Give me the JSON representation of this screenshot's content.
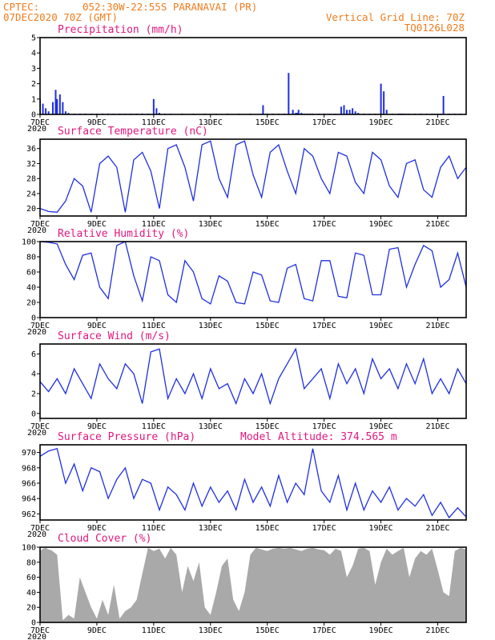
{
  "header": {
    "source": "CPTEC:",
    "location": "052:30W-22:55S  PARANAVAI (PR)",
    "date": "07DEC2020 70Z (GMT)",
    "grid_note": "Vertical Grid Line: 70Z",
    "code": "TQ0126L028"
  },
  "colors": {
    "title": "#e0187e",
    "header": "#f07c1c",
    "series": "#1f2fe0",
    "cloud": "#a9a9a9"
  },
  "x_axis": {
    "days": [
      7,
      22
    ],
    "tick_days": [
      7,
      9,
      11,
      13,
      15,
      17,
      19,
      21
    ],
    "tick_labels": [
      "7DEC",
      "9DEC",
      "11DEC",
      "13DEC",
      "15DEC",
      "17DEC",
      "19DEC",
      "21DEC"
    ],
    "year_label": "2020"
  },
  "chart_data": [
    {
      "type": "bar",
      "title": "Precipitation (mm/h)",
      "ylim": [
        0,
        5
      ],
      "yticks": [
        0,
        1,
        2,
        3,
        4,
        5
      ],
      "x": [
        7.0,
        7.1,
        7.2,
        7.3,
        7.45,
        7.55,
        7.6,
        7.7,
        7.8,
        7.9,
        8.0,
        8.2,
        8.4,
        8.6,
        8.8,
        9.0,
        9.2,
        9.4,
        9.6,
        9.8,
        10.0,
        10.2,
        10.4,
        10.6,
        10.8,
        11.0,
        11.1,
        11.2,
        11.4,
        11.6,
        12.0,
        12.4,
        12.8,
        13.2,
        13.6,
        14.0,
        14.4,
        14.8,
        14.85,
        15.0,
        15.2,
        15.4,
        15.6,
        15.75,
        15.9,
        16.0,
        16.05,
        16.1,
        16.2,
        16.3,
        16.4,
        16.5,
        16.6,
        16.8,
        17.0,
        17.2,
        17.4,
        17.6,
        17.7,
        17.8,
        17.9,
        18.0,
        18.1,
        18.2,
        18.4,
        18.6,
        18.8,
        19.0,
        19.1,
        19.2,
        19.4,
        19.6,
        19.65,
        19.7,
        19.75,
        19.8,
        19.9,
        20.0,
        20.2,
        20.4,
        20.6,
        20.8,
        20.9,
        21.0,
        21.1,
        21.2,
        21.4,
        21.6,
        21.8,
        22.0
      ],
      "values": [
        1.0,
        0.7,
        0.4,
        0.2,
        0.8,
        1.6,
        1.0,
        1.3,
        0.8,
        0.2,
        0.1,
        0.05,
        0.05,
        0.05,
        0.05,
        0.05,
        0.05,
        0.05,
        0.05,
        0.05,
        0.05,
        0.05,
        0.05,
        0.05,
        0.05,
        1.0,
        0.4,
        0.1,
        0.05,
        0.05,
        0.05,
        0.05,
        0.05,
        0.05,
        0.05,
        0.05,
        0.05,
        0.05,
        0.6,
        0.05,
        0.05,
        0.05,
        0.05,
        2.7,
        0.3,
        0.1,
        0.1,
        0.3,
        0.1,
        0.05,
        0.05,
        0.05,
        0.05,
        0.05,
        0.05,
        0.05,
        0.05,
        0.5,
        0.6,
        0.3,
        0.3,
        0.4,
        0.2,
        0.1,
        0.05,
        0.05,
        0.05,
        2.0,
        1.5,
        0.3,
        0.05,
        0.05,
        0.05,
        0.05,
        0.05,
        0.05,
        0.05,
        0.05,
        0.05,
        0.05,
        0.05,
        0.05,
        0.05,
        0.05,
        0.05,
        1.2,
        0.05,
        0.05,
        0.05,
        0.05
      ]
    },
    {
      "type": "line",
      "title": "Surface Temperature (nC)",
      "ylim": [
        18,
        38.5
      ],
      "yticks": [
        20,
        24,
        28,
        32,
        36
      ],
      "x": [
        7.0,
        7.3,
        7.6,
        7.9,
        8.2,
        8.5,
        8.8,
        9.1,
        9.4,
        9.7,
        10.0,
        10.3,
        10.6,
        10.9,
        11.2,
        11.5,
        11.8,
        12.1,
        12.4,
        12.7,
        13.0,
        13.3,
        13.6,
        13.9,
        14.2,
        14.5,
        14.8,
        15.1,
        15.4,
        15.7,
        16.0,
        16.3,
        16.6,
        16.9,
        17.2,
        17.5,
        17.8,
        18.1,
        18.4,
        18.7,
        19.0,
        19.3,
        19.6,
        19.9,
        20.2,
        20.5,
        20.8,
        21.1,
        21.4,
        21.7,
        22.0
      ],
      "values": [
        20,
        19.2,
        19.0,
        22,
        28,
        26,
        19,
        32,
        34,
        31,
        19,
        33,
        35,
        30,
        20,
        36,
        37,
        31,
        22,
        37,
        38,
        28,
        23,
        37,
        38,
        29,
        23,
        35,
        37,
        30,
        24,
        36,
        34,
        28,
        24,
        35,
        34,
        27,
        24,
        35,
        33,
        26,
        23,
        32,
        33,
        25,
        23,
        31,
        34,
        28,
        31
      ]
    },
    {
      "type": "line",
      "title": "Relative Humidity (%)",
      "ylim": [
        0,
        100
      ],
      "yticks": [
        0,
        20,
        40,
        60,
        80,
        100
      ],
      "x": [
        7.0,
        7.3,
        7.6,
        7.9,
        8.2,
        8.5,
        8.8,
        9.1,
        9.4,
        9.7,
        10.0,
        10.3,
        10.6,
        10.9,
        11.2,
        11.5,
        11.8,
        12.1,
        12.4,
        12.7,
        13.0,
        13.3,
        13.6,
        13.9,
        14.2,
        14.5,
        14.8,
        15.1,
        15.4,
        15.7,
        16.0,
        16.3,
        16.6,
        16.9,
        17.2,
        17.5,
        17.8,
        18.1,
        18.4,
        18.7,
        19.0,
        19.3,
        19.6,
        19.9,
        20.2,
        20.5,
        20.8,
        21.1,
        21.4,
        21.7,
        22.0
      ],
      "values": [
        100,
        99,
        97,
        70,
        50,
        82,
        85,
        40,
        25,
        95,
        100,
        55,
        22,
        80,
        75,
        30,
        20,
        75,
        60,
        25,
        18,
        55,
        48,
        20,
        18,
        60,
        56,
        22,
        20,
        65,
        70,
        25,
        22,
        75,
        75,
        28,
        26,
        85,
        82,
        30,
        30,
        90,
        92,
        40,
        70,
        95,
        88,
        40,
        50,
        85,
        40
      ]
    },
    {
      "type": "line",
      "title": "Surface Wind (m/s)",
      "ylim": [
        -0.5,
        7
      ],
      "yticks": [
        0,
        2,
        4,
        6
      ],
      "x": [
        7.0,
        7.3,
        7.6,
        7.9,
        8.2,
        8.5,
        8.8,
        9.1,
        9.4,
        9.7,
        10.0,
        10.3,
        10.6,
        10.9,
        11.2,
        11.5,
        11.8,
        12.1,
        12.4,
        12.7,
        13.0,
        13.3,
        13.6,
        13.9,
        14.2,
        14.5,
        14.8,
        15.1,
        15.4,
        15.7,
        16.0,
        16.3,
        16.6,
        16.9,
        17.2,
        17.5,
        17.8,
        18.1,
        18.4,
        18.7,
        19.0,
        19.3,
        19.6,
        19.9,
        20.2,
        20.5,
        20.8,
        21.1,
        21.4,
        21.7,
        22.0
      ],
      "values": [
        3.2,
        2.2,
        3.5,
        2.0,
        4.5,
        3.0,
        1.5,
        5.0,
        3.5,
        2.5,
        5.0,
        4.0,
        1.0,
        6.2,
        6.5,
        1.5,
        3.5,
        2.0,
        4.0,
        1.5,
        4.5,
        2.5,
        3.0,
        1.0,
        3.5,
        2.0,
        4.0,
        1.0,
        3.5,
        5.0,
        6.5,
        2.5,
        3.5,
        4.5,
        1.5,
        5.0,
        3.0,
        4.5,
        2.0,
        5.5,
        3.5,
        4.5,
        2.5,
        5.0,
        3.0,
        5.5,
        2.0,
        3.5,
        2.0,
        4.5,
        3.0
      ]
    },
    {
      "type": "line",
      "title": "Surface Pressure (hPa)",
      "subtitle": "Model Altitude: 374.565 m",
      "ylim": [
        961.2,
        971
      ],
      "yticks": [
        962,
        964,
        966,
        968,
        970
      ],
      "x": [
        7.0,
        7.3,
        7.6,
        7.9,
        8.2,
        8.5,
        8.8,
        9.1,
        9.4,
        9.7,
        10.0,
        10.3,
        10.6,
        10.9,
        11.2,
        11.5,
        11.8,
        12.1,
        12.4,
        12.7,
        13.0,
        13.3,
        13.6,
        13.9,
        14.2,
        14.5,
        14.8,
        15.1,
        15.4,
        15.7,
        16.0,
        16.3,
        16.6,
        16.9,
        17.2,
        17.5,
        17.8,
        18.1,
        18.4,
        18.7,
        19.0,
        19.3,
        19.6,
        19.9,
        20.2,
        20.5,
        20.8,
        21.1,
        21.4,
        21.7,
        22.0
      ],
      "values": [
        969.5,
        970.2,
        970.5,
        966,
        968.5,
        965,
        968,
        967.5,
        964,
        966.5,
        968,
        964,
        966.5,
        966,
        962.5,
        965.5,
        964.5,
        962.5,
        966,
        963,
        965.5,
        963.5,
        965,
        962.5,
        966.5,
        963.5,
        965.5,
        963,
        967,
        963.5,
        966,
        964.5,
        970.5,
        965,
        963.5,
        967,
        962.5,
        966,
        962.5,
        965,
        963.5,
        965.5,
        962.5,
        964,
        963,
        964.5,
        961.8,
        963.5,
        961.5,
        962.8,
        961.6
      ]
    },
    {
      "type": "area",
      "title": "Cloud Cover (%)",
      "ylim": [
        0,
        100
      ],
      "yticks": [
        0,
        20,
        40,
        60,
        80,
        100
      ],
      "x": [
        7.0,
        7.1,
        7.2,
        7.3,
        7.4,
        7.6,
        7.8,
        8.0,
        8.2,
        8.4,
        8.6,
        8.8,
        9.0,
        9.2,
        9.4,
        9.6,
        9.8,
        10.0,
        10.2,
        10.4,
        10.6,
        10.8,
        11.0,
        11.2,
        11.4,
        11.6,
        11.8,
        12.0,
        12.2,
        12.4,
        12.6,
        12.8,
        13.0,
        13.2,
        13.4,
        13.6,
        13.8,
        14.0,
        14.2,
        14.4,
        14.6,
        14.8,
        15.0,
        15.2,
        15.4,
        15.6,
        15.8,
        16.0,
        16.2,
        16.4,
        16.6,
        16.8,
        17.0,
        17.2,
        17.4,
        17.6,
        17.8,
        18.0,
        18.2,
        18.4,
        18.6,
        18.8,
        19.0,
        19.2,
        19.4,
        19.6,
        19.8,
        20.0,
        20.2,
        20.4,
        20.6,
        20.8,
        21.0,
        21.2,
        21.4,
        21.6,
        21.8,
        22.0
      ],
      "values": [
        95,
        98,
        99,
        97,
        96,
        90,
        3,
        10,
        5,
        60,
        40,
        20,
        5,
        30,
        10,
        50,
        5,
        15,
        20,
        30,
        65,
        99,
        95,
        98,
        85,
        99,
        90,
        40,
        75,
        55,
        80,
        20,
        10,
        40,
        75,
        85,
        30,
        15,
        40,
        90,
        99,
        97,
        95,
        98,
        99,
        98,
        99,
        97,
        95,
        98,
        99,
        97,
        96,
        90,
        98,
        95,
        60,
        75,
        98,
        99,
        95,
        50,
        80,
        98,
        90,
        95,
        99,
        60,
        85,
        95,
        90,
        98,
        70,
        40,
        35,
        95,
        99,
        97
      ]
    }
  ]
}
